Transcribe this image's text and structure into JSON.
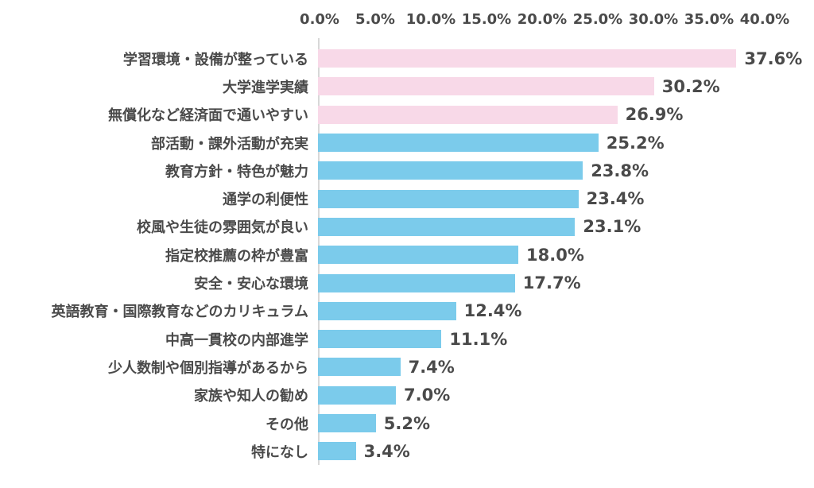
{
  "chart_data": {
    "type": "bar",
    "orientation": "horizontal",
    "title": "",
    "xlabel": "",
    "ylabel": "",
    "xlim": [
      0,
      40
    ],
    "x_tick_step": 5,
    "x_ticks": [
      "0.0%",
      "5.0%",
      "10.0%",
      "15.0%",
      "20.0%",
      "25.0%",
      "30.0%",
      "35.0%",
      "40.0%"
    ],
    "grid": false,
    "legend": "none",
    "categories": [
      "学習環境・設備が整っている",
      "大学進学実績",
      "無償化など経済面で通いやすい",
      "部活動・課外活動が充実",
      "教育方針・特色が魅力",
      "通学の利便性",
      "校風や生徒の雰囲気が良い",
      "指定校推薦の枠が豊富",
      "安全・安心な環境",
      "英語教育・国際教育などのカリキュラム",
      "中高一貫校の内部進学",
      "少人数制や個別指導があるから",
      "家族や知人の勧め",
      "その他",
      "特になし"
    ],
    "values": [
      37.6,
      30.2,
      26.9,
      25.2,
      23.8,
      23.4,
      23.1,
      18.0,
      17.7,
      12.4,
      11.1,
      7.4,
      7.0,
      5.2,
      3.4
    ],
    "value_labels": [
      "37.6%",
      "30.2%",
      "26.9%",
      "25.2%",
      "23.8%",
      "23.4%",
      "23.1%",
      "18.0%",
      "17.7%",
      "12.4%",
      "11.1%",
      "7.4%",
      "7.0%",
      "5.2%",
      "3.4%"
    ],
    "bar_colors": [
      "#F8D9E8",
      "#F8D9E8",
      "#F8D9E8",
      "#7BCBEB",
      "#7BCBEB",
      "#7BCBEB",
      "#7BCBEB",
      "#7BCBEB",
      "#7BCBEB",
      "#7BCBEB",
      "#7BCBEB",
      "#7BCBEB",
      "#7BCBEB",
      "#7BCBEB",
      "#7BCBEB"
    ],
    "colors": {
      "highlight_pink": "#F8D9E8",
      "default_blue": "#7BCBEB",
      "text": "#4A4A4A",
      "axis_line": "#D8D8D8",
      "background": "#FFFFFF"
    }
  }
}
